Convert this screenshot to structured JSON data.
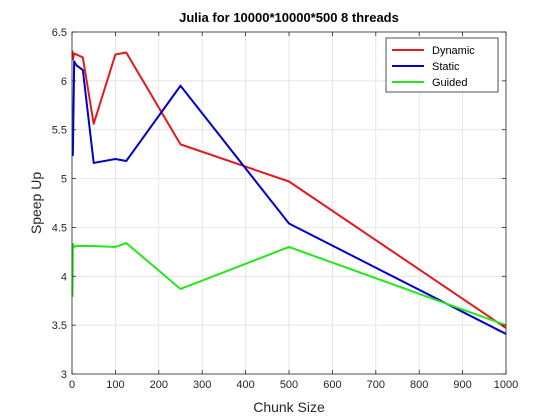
{
  "chart_data": {
    "type": "line",
    "title": "Julia for 10000*10000*500 8 threads",
    "xlabel": "Chunk Size",
    "ylabel": "Speep Up",
    "xlim": [
      0,
      1000
    ],
    "ylim": [
      3,
      6.5
    ],
    "xticks": [
      0,
      100,
      200,
      300,
      400,
      500,
      600,
      700,
      800,
      900,
      1000
    ],
    "yticks": [
      3,
      3.5,
      4,
      4.5,
      5,
      5.5,
      6,
      6.5
    ],
    "xtick_labels": [
      "0",
      "100",
      "200",
      "300",
      "400",
      "500",
      "600",
      "700",
      "800",
      "900",
      "1000"
    ],
    "ytick_labels": [
      "3",
      "3.5",
      "4",
      "4.5",
      "5",
      "5.5",
      "6",
      "6.5"
    ],
    "grid": true,
    "legend_position": "top-right",
    "series": [
      {
        "name": "Dynamic",
        "color": "#e31a1c",
        "x": [
          1,
          2,
          5,
          10,
          25,
          50,
          100,
          125,
          250,
          500,
          1000
        ],
        "y": [
          6.31,
          6.22,
          6.28,
          6.27,
          6.24,
          5.56,
          6.27,
          6.29,
          5.35,
          4.97,
          3.47
        ]
      },
      {
        "name": "Static",
        "color": "#0000cd",
        "x": [
          1,
          2,
          5,
          10,
          25,
          50,
          100,
          125,
          250,
          500,
          1000
        ],
        "y": [
          5.23,
          5.25,
          6.2,
          6.16,
          6.11,
          5.16,
          5.2,
          5.18,
          5.95,
          4.54,
          3.41
        ]
      },
      {
        "name": "Guided",
        "color": "#22e81a",
        "x": [
          1,
          2,
          5,
          10,
          25,
          50,
          100,
          125,
          250,
          500,
          1000
        ],
        "y": [
          3.79,
          4.33,
          4.3,
          4.31,
          4.31,
          4.31,
          4.3,
          4.34,
          3.87,
          4.3,
          3.5
        ]
      }
    ]
  }
}
